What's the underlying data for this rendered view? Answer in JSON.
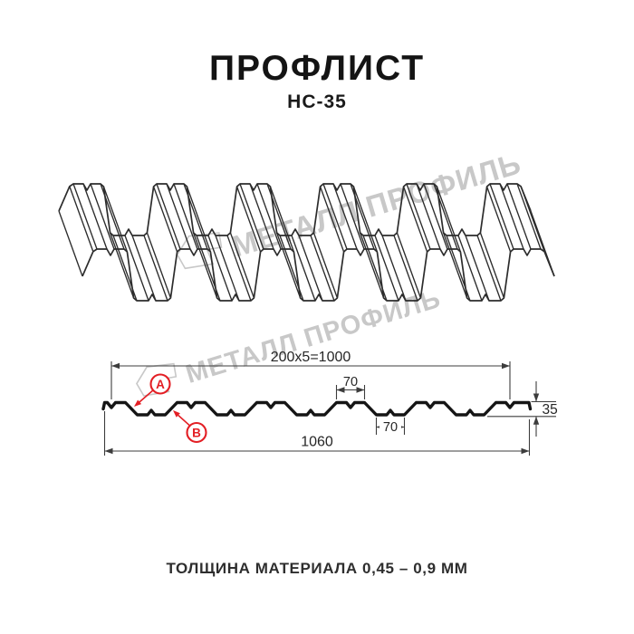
{
  "header": {
    "title": "ПРОФЛИСТ",
    "subtitle": "НС-35"
  },
  "watermark": {
    "brand": "МЕТАЛЛ ПРОФИЛЬ"
  },
  "cross_section": {
    "dim_top_width": "200x5=1000",
    "dim_overall_width": "1060",
    "dim_crest_width": "70",
    "dim_trough_width": "70",
    "dim_height": "35",
    "face_label_a": "A",
    "face_label_b": "B"
  },
  "footer": {
    "thickness_note": "ТОЛЩИНА МАТЕРИАЛА 0,45 – 0,9 ММ"
  },
  "colors": {
    "accent_red": "#e31e24",
    "drawing_line": "#2c2c2c",
    "profile_line": "#151515",
    "dimension_line": "#3c3c3c",
    "watermark_gray": "#c8c8c8",
    "text_dark": "#141414"
  }
}
